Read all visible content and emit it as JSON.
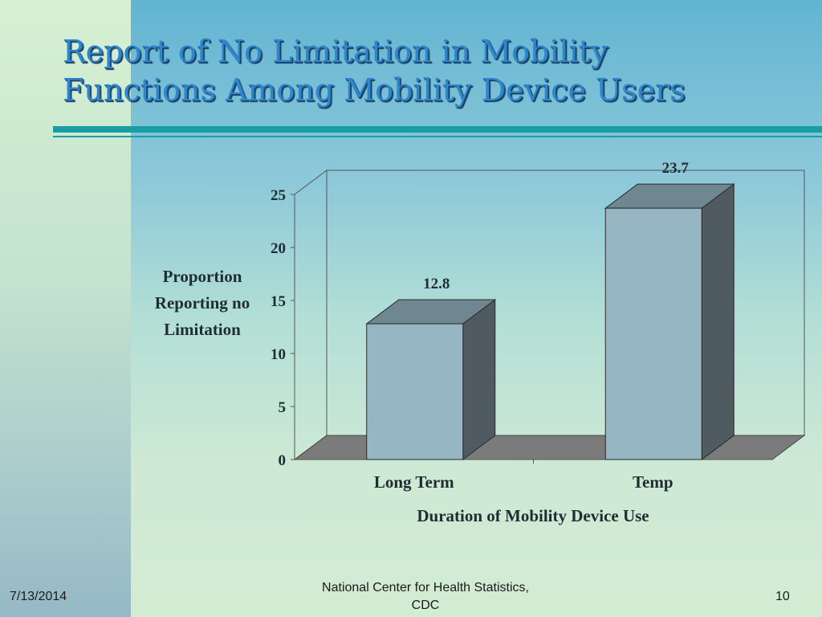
{
  "slide": {
    "title_line1": "Report of  No Limitation in Mobility",
    "title_line2": "Functions Among Mobility Device Users",
    "footer_date": "7/13/2014",
    "footer_source": "National Center for Health Statistics, CDC",
    "page_number": "10"
  },
  "chart_data": {
    "type": "bar",
    "categories": [
      "Long Term",
      "Temp"
    ],
    "values": [
      12.8,
      23.7
    ],
    "data_labels": [
      "12.8",
      "23.7"
    ],
    "xlabel": "Duration of Mobility Device Use",
    "ylabel": "Proportion Reporting no Limitation",
    "ylim": [
      0,
      25
    ],
    "yticks": [
      0,
      5,
      10,
      15,
      20,
      25
    ],
    "grid": false,
    "legend": "none",
    "colors": {
      "bar_front": "#97b6c4",
      "bar_top": "#6f8791",
      "bar_side": "#4f5b61",
      "floor": "#7b7b7b",
      "axis": "#555555"
    }
  }
}
